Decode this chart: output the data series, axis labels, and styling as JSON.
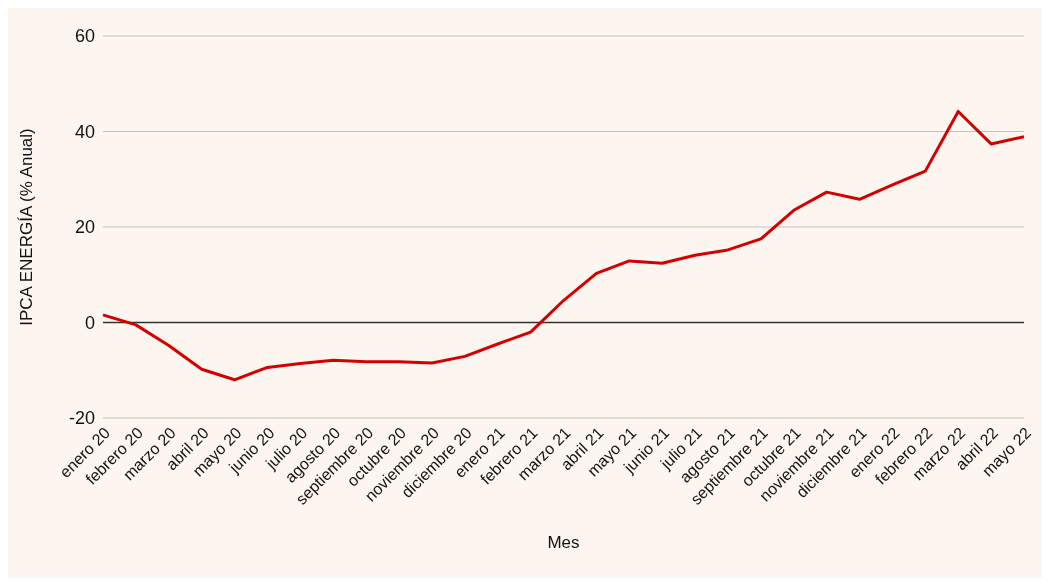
{
  "chart_data": {
    "type": "line",
    "xlabel": "Mes",
    "ylabel": "IPCA ENERGÍA (% Anual)",
    "categories": [
      "enero 20",
      "febrero 20",
      "marzo 20",
      "abril 20",
      "mayo 20",
      "junio 20",
      "julio 20",
      "agosto 20",
      "septiembre 20",
      "octubre 20",
      "noviembre 20",
      "diciembre 20",
      "enero 21",
      "febrero 21",
      "marzo 21",
      "abril 21",
      "mayo 21",
      "junio 21",
      "julio 21",
      "agosto 21",
      "septiembre 21",
      "octubre 21",
      "noviembre 21",
      "diciembre 21",
      "enero 22",
      "febrero 22",
      "marzo 22",
      "abril 22",
      "mayo 22"
    ],
    "series": [
      {
        "color": "#d40000",
        "values": [
          1.6,
          -0.5,
          -4.8,
          -9.8,
          -12.0,
          -9.4,
          -8.6,
          -7.9,
          -8.2,
          -8.2,
          -8.5,
          -7.1,
          -4.5,
          -2.0,
          4.6,
          10.3,
          12.9,
          12.4,
          14.1,
          15.2,
          17.5,
          23.5,
          27.3,
          25.8,
          28.8,
          31.7,
          44.2,
          37.4,
          38.9
        ]
      }
    ],
    "ylim": [
      -20,
      60
    ],
    "yticks": [
      -20,
      0,
      20,
      40,
      60
    ],
    "grid": "y",
    "legend": false,
    "marker": "none",
    "line_style": "solid",
    "ref_lines": [
      {
        "axis": "y",
        "value": 0,
        "color": "#333333"
      }
    ]
  }
}
